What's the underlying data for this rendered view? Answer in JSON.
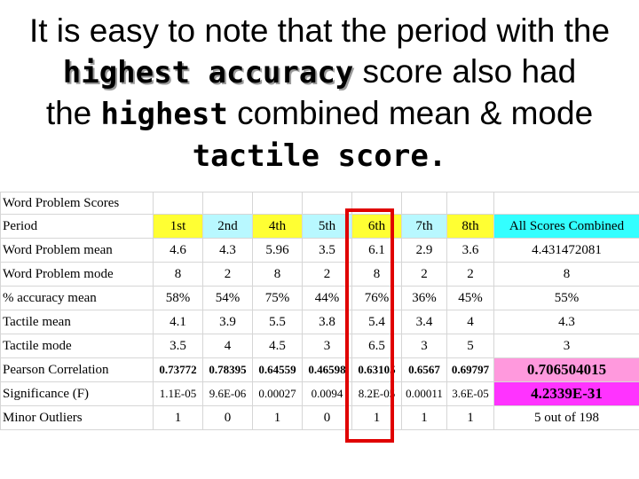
{
  "heading": {
    "line1": "It is easy to note that the period with the",
    "line2_bold": "highest accuracy",
    "line2_rest": " score also had",
    "line3_start": "the ",
    "line3_bold": "highest",
    "line3_rest": " combined mean & mode",
    "line4_bold": "tactile score."
  },
  "table": {
    "title": "Word Problem Scores",
    "header": [
      "Period",
      "1st",
      "2nd",
      "4th",
      "5th",
      "6th",
      "7th",
      "8th",
      "All Scores Combined"
    ],
    "rows": [
      [
        "Word Problem mean",
        "4.6",
        "4.3",
        "5.96",
        "3.5",
        "6.1",
        "2.9",
        "3.6",
        "4.431472081"
      ],
      [
        "Word Problem mode",
        "8",
        "2",
        "8",
        "2",
        "8",
        "2",
        "2",
        "8"
      ],
      [
        "% accuracy mean",
        "58%",
        "54%",
        "75%",
        "44%",
        "76%",
        "36%",
        "45%",
        "55%"
      ],
      [
        "Tactile mean",
        "4.1",
        "3.9",
        "5.5",
        "3.8",
        "5.4",
        "3.4",
        "4",
        "4.3"
      ],
      [
        "Tactile mode",
        "3.5",
        "4",
        "4.5",
        "3",
        "6.5",
        "3",
        "5",
        "3"
      ],
      [
        "Pearson Correlation",
        "0.73772",
        "0.78395",
        "0.64559",
        "0.46598",
        "0.63105",
        "0.6567",
        "0.69797",
        "0.706504015"
      ],
      [
        "Significance (F)",
        "1.1E-05",
        "9.6E-06",
        "0.00027",
        "0.0094",
        "8.2E-05",
        "0.00011",
        "3.6E-05",
        "4.2339E-31"
      ],
      [
        "Minor Outliers",
        "1",
        "0",
        "1",
        "0",
        "1",
        "1",
        "1",
        "5 out of 198"
      ]
    ]
  },
  "colors": {
    "yellow": "#ffff33",
    "light_cyan": "#b8f8ff",
    "aqua": "#33ffff",
    "pink": "#ff99dd",
    "magenta": "#ff33ff",
    "highlight_box": "#e00000"
  }
}
